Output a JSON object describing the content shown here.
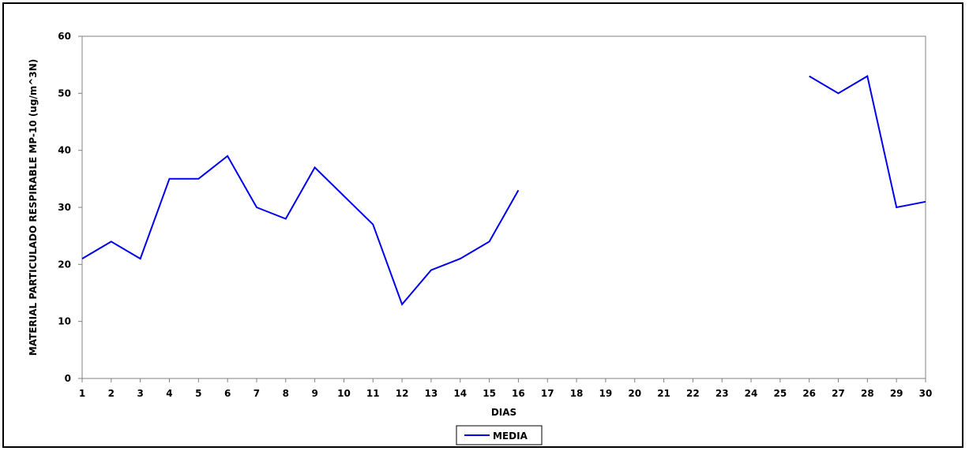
{
  "chart_data": {
    "type": "line",
    "title": "",
    "xlabel": "DIAS",
    "ylabel": "MATERIAL PARTICULADO RESPIRABLE MP-10 (ug/m^3N)",
    "x": [
      1,
      2,
      3,
      4,
      5,
      6,
      7,
      8,
      9,
      10,
      11,
      12,
      13,
      14,
      15,
      16,
      17,
      18,
      19,
      20,
      21,
      22,
      23,
      24,
      25,
      26,
      27,
      28,
      29,
      30
    ],
    "xlim": [
      1,
      30
    ],
    "ylim": [
      0,
      60
    ],
    "yticks": [
      0,
      10,
      20,
      30,
      40,
      50,
      60
    ],
    "grid": false,
    "legend": "bottom",
    "series": [
      {
        "name": "MEDIA",
        "color": "#0000ee",
        "values": [
          21,
          24,
          21,
          35,
          35,
          39,
          30,
          28,
          37,
          32,
          27,
          13,
          19,
          21,
          24,
          33,
          null,
          null,
          null,
          null,
          null,
          null,
          null,
          null,
          null,
          53,
          50,
          53,
          30,
          31
        ]
      }
    ]
  }
}
